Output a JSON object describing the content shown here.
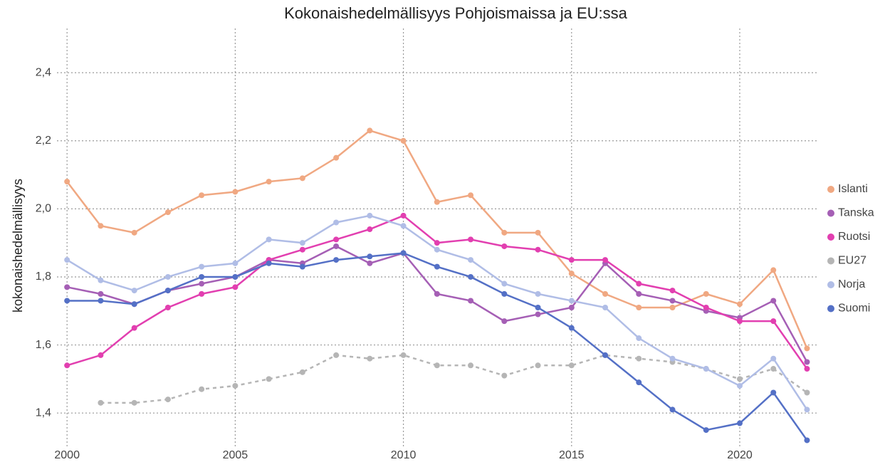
{
  "chart_data": {
    "type": "line",
    "title": "Kokonaishedelmällisyys Pohjoismaissa ja EU:ssa",
    "ylabel": "kokonaishedelmällisyys",
    "x": [
      2000,
      2001,
      2002,
      2003,
      2004,
      2005,
      2006,
      2007,
      2008,
      2009,
      2010,
      2011,
      2012,
      2013,
      2014,
      2015,
      2016,
      2017,
      2018,
      2019,
      2020,
      2021,
      2022
    ],
    "series": [
      {
        "name": "Islanti",
        "color": "#f0a882",
        "values": [
          2.08,
          1.95,
          1.93,
          1.99,
          2.04,
          2.05,
          2.08,
          2.09,
          2.15,
          2.23,
          2.2,
          2.02,
          2.04,
          1.93,
          1.93,
          1.81,
          1.75,
          1.71,
          1.71,
          1.75,
          1.72,
          1.82,
          1.59
        ]
      },
      {
        "name": "Tanska",
        "color": "#a55fb5",
        "values": [
          1.77,
          1.75,
          1.72,
          1.76,
          1.78,
          1.8,
          1.85,
          1.84,
          1.89,
          1.84,
          1.87,
          1.75,
          1.73,
          1.67,
          1.69,
          1.71,
          1.84,
          1.75,
          1.73,
          1.7,
          1.68,
          1.73,
          1.55
        ]
      },
      {
        "name": "Ruotsi",
        "color": "#e23fb0",
        "values": [
          1.54,
          1.57,
          1.65,
          1.71,
          1.75,
          1.77,
          1.85,
          1.88,
          1.91,
          1.94,
          1.98,
          1.9,
          1.91,
          1.89,
          1.88,
          1.85,
          1.85,
          1.78,
          1.76,
          1.71,
          1.67,
          1.67,
          1.53
        ]
      },
      {
        "name": "EU27",
        "color": "#b5b5b5",
        "linestyle": "dashed",
        "values": [
          null,
          1.43,
          1.43,
          1.44,
          1.47,
          1.48,
          1.5,
          1.52,
          1.57,
          1.56,
          1.57,
          1.54,
          1.54,
          1.51,
          1.54,
          1.54,
          1.57,
          1.56,
          1.55,
          1.53,
          1.5,
          1.53,
          1.46
        ]
      },
      {
        "name": "Norja",
        "color": "#b0bde6",
        "values": [
          1.85,
          1.79,
          1.76,
          1.8,
          1.83,
          1.84,
          1.91,
          1.9,
          1.96,
          1.98,
          1.95,
          1.88,
          1.85,
          1.78,
          1.75,
          1.73,
          1.71,
          1.62,
          1.56,
          1.53,
          1.48,
          1.56,
          1.41
        ]
      },
      {
        "name": "Suomi",
        "color": "#5470c6",
        "values": [
          1.73,
          1.73,
          1.72,
          1.76,
          1.8,
          1.8,
          1.84,
          1.83,
          1.85,
          1.86,
          1.87,
          1.83,
          1.8,
          1.75,
          1.71,
          1.65,
          1.57,
          1.49,
          1.41,
          1.35,
          1.37,
          1.46,
          1.32
        ]
      }
    ],
    "xlim": [
      1999.7,
      2022.35
    ],
    "xticks": [
      2000,
      2005,
      2010,
      2015,
      2020
    ],
    "ylim": [
      1.3,
      2.53
    ],
    "yticks": [
      {
        "value": 1.4,
        "label": "1,4"
      },
      {
        "value": 1.6,
        "label": "1,6"
      },
      {
        "value": 1.8,
        "label": "1,8"
      },
      {
        "value": 2.0,
        "label": "2,0"
      },
      {
        "value": 2.2,
        "label": "2,2"
      },
      {
        "value": 2.4,
        "label": "2,4"
      }
    ],
    "grid": true,
    "legend": "right"
  }
}
